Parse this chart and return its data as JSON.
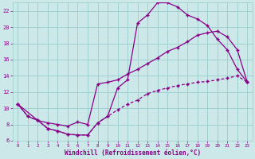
{
  "xlabel": "Windchill (Refroidissement éolien,°C)",
  "background_color": "#cce8e8",
  "grid_color": "#99cccc",
  "line_color": "#880088",
  "xlim": [
    -0.5,
    23.5
  ],
  "ylim": [
    6,
    23
  ],
  "yticks": [
    6,
    8,
    10,
    12,
    14,
    16,
    18,
    20,
    22
  ],
  "xticks": [
    0,
    1,
    2,
    3,
    4,
    5,
    6,
    7,
    8,
    9,
    10,
    11,
    12,
    13,
    14,
    15,
    16,
    17,
    18,
    19,
    20,
    21,
    22,
    23
  ],
  "series1_x": [
    0,
    1,
    2,
    3,
    4,
    5,
    6,
    7,
    8,
    9,
    10,
    11,
    12,
    13,
    14,
    15,
    16,
    17,
    18,
    19,
    20,
    21,
    22,
    23
  ],
  "series1_y": [
    10.5,
    9.0,
    8.5,
    7.5,
    7.2,
    6.8,
    6.7,
    6.7,
    8.2,
    9.0,
    12.5,
    13.5,
    20.5,
    21.5,
    23.0,
    23.0,
    22.5,
    21.5,
    21.0,
    20.2,
    18.5,
    17.2,
    14.8,
    13.2
  ],
  "series2_x": [
    0,
    2,
    3,
    4,
    5,
    6,
    7,
    8,
    9,
    10,
    11,
    12,
    13,
    14,
    15,
    16,
    17,
    18,
    19,
    20,
    21,
    22,
    23
  ],
  "series2_y": [
    10.5,
    8.5,
    8.2,
    8.0,
    7.8,
    8.3,
    8.0,
    13.0,
    13.2,
    13.5,
    14.2,
    14.8,
    15.5,
    16.2,
    17.0,
    17.5,
    18.2,
    19.0,
    19.3,
    19.5,
    18.8,
    17.2,
    13.2
  ],
  "series3_x": [
    0,
    1,
    2,
    3,
    4,
    5,
    6,
    7,
    8,
    9,
    10,
    11,
    12,
    13,
    14,
    15,
    16,
    17,
    18,
    19,
    20,
    21,
    22,
    23
  ],
  "series3_y": [
    10.5,
    9.0,
    8.5,
    7.5,
    7.2,
    6.8,
    6.7,
    6.7,
    8.2,
    9.0,
    9.8,
    10.5,
    11.0,
    11.8,
    12.2,
    12.5,
    12.8,
    13.0,
    13.2,
    13.3,
    13.5,
    13.7,
    14.0,
    13.2
  ]
}
